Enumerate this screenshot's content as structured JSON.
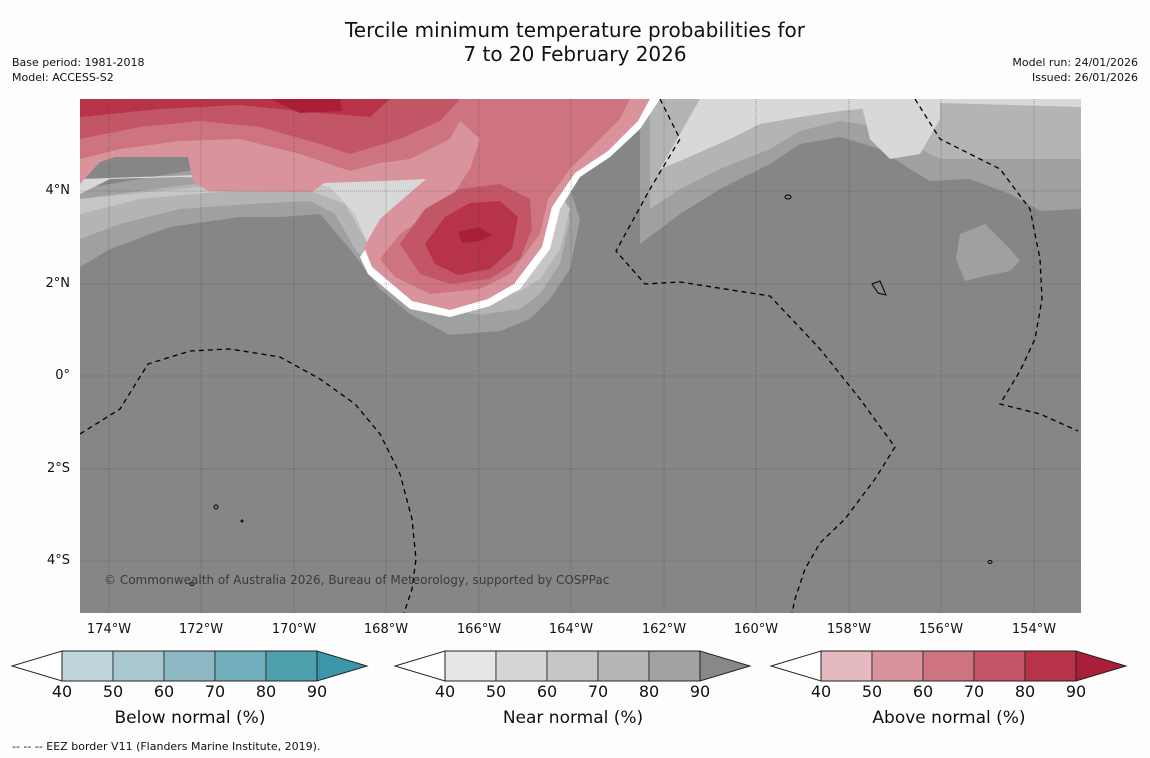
{
  "title_line1": "Tercile minimum temperature probabilities for",
  "title_line2": "7 to 20 February 2026",
  "base_period": "Base period: 1981-2018",
  "model": "Model: ACCESS-S2",
  "model_run": "Model run: 24/01/2026",
  "issued": "Issued: 26/01/2026",
  "lat_labels": [
    "4°N",
    "2°N",
    "0°",
    "2°S",
    "4°S"
  ],
  "lon_labels": [
    "174°W",
    "172°W",
    "170°W",
    "168°W",
    "166°W",
    "164°W",
    "162°W",
    "160°W",
    "158°W",
    "156°W",
    "154°W"
  ],
  "copyright": "© Commonwealth of Australia 2026, Bureau of Meteorology, supported by COSPPac",
  "footer": "--  --  -- EEZ border V11 (Flanders Marine Institute, 2019).",
  "colorbars": {
    "below": {
      "label": "Below normal (%)",
      "ticks": [
        "40",
        "50",
        "60",
        "70",
        "80",
        "90"
      ],
      "colors": [
        "#bfd5dc",
        "#a8c7ce",
        "#8cb8c4",
        "#6faeba",
        "#4ea0ae",
        "#3a96a8"
      ]
    },
    "near": {
      "label": "Near normal (%)",
      "ticks": [
        "40",
        "50",
        "60",
        "70",
        "80",
        "90"
      ],
      "colors": [
        "#e6e6e6",
        "#d6d6d6",
        "#c6c6c6",
        "#b6b6b6",
        "#a2a2a2",
        "#888888"
      ]
    },
    "above": {
      "label": "Above normal (%)",
      "ticks": [
        "40",
        "50",
        "60",
        "70",
        "80",
        "90"
      ],
      "colors": [
        "#e4b9bf",
        "#d9939c",
        "#cd7480",
        "#c35666",
        "#b73347",
        "#aa1e3a"
      ]
    }
  },
  "map_colors": {
    "base": "#868686",
    "near_90": "#a0a0a0",
    "near_80": "#b4b4b4",
    "near_70": "#c6c6c6",
    "near_60": "#d8d8d8",
    "above_50": "#d9939c",
    "above_60": "#cd7480",
    "above_70": "#c35666",
    "above_80": "#b73347",
    "above_90": "#aa1e3a"
  }
}
